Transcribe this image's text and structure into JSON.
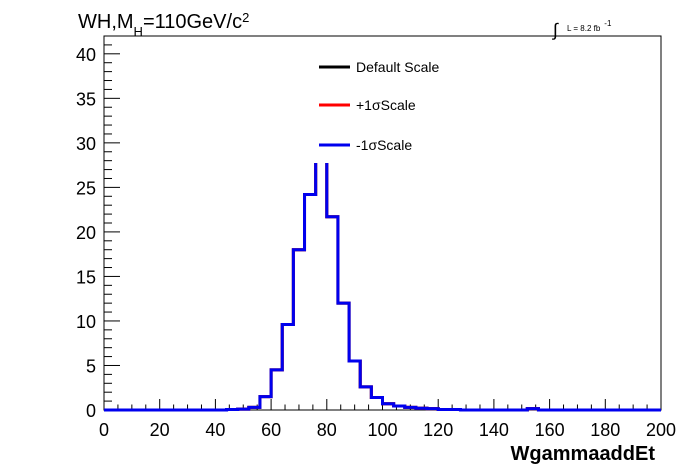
{
  "title": {
    "prefix": "WH,M",
    "subscript": "H",
    "suffix": "=110GeV/c",
    "superscript": "2"
  },
  "luminosity": {
    "integral_symbol": "∫",
    "text": "L = 8.2 fb",
    "superscript": "-1"
  },
  "chart_data": {
    "type": "line",
    "xlabel": "WgammaaddEt",
    "ylabel": "",
    "xlim": [
      0,
      200
    ],
    "ylim": [
      0,
      42
    ],
    "x_ticks": [
      "0",
      "20",
      "40",
      "60",
      "80",
      "100",
      "120",
      "140",
      "160",
      "180",
      "200"
    ],
    "y_ticks": [
      "0",
      "5",
      "10",
      "15",
      "20",
      "25",
      "30",
      "35",
      "40"
    ],
    "grid": false,
    "legend_position": "top-center",
    "bin_edges": [
      0,
      4,
      8,
      12,
      16,
      20,
      24,
      28,
      32,
      36,
      40,
      44,
      48,
      52,
      56,
      60,
      64,
      68,
      72,
      76,
      80,
      84,
      88,
      92,
      96,
      100,
      104,
      108,
      112,
      116,
      120,
      124,
      128,
      132,
      136,
      140,
      144,
      148,
      152,
      156,
      160,
      164,
      168,
      172,
      176,
      180,
      184,
      188,
      192,
      196,
      200
    ],
    "series": [
      {
        "name": "Default Scale",
        "color": "#000000",
        "values": [
          0,
          0,
          0,
          0,
          0,
          0,
          0,
          0,
          0,
          0,
          0,
          0.05,
          0.1,
          0.3,
          1.5,
          4.5,
          9.6,
          18,
          24.2,
          29.5,
          21.7,
          12,
          5.5,
          2.6,
          1.4,
          0.7,
          0.45,
          0.3,
          0.2,
          0.15,
          0.05,
          0.05,
          0,
          0,
          0,
          0,
          0,
          0,
          0.15,
          0,
          0,
          0,
          0,
          0,
          0,
          0,
          0,
          0,
          0,
          0
        ]
      },
      {
        "name": "+1σScale",
        "color": "#ff0000",
        "values": [
          0,
          0,
          0,
          0,
          0,
          0,
          0,
          0,
          0,
          0,
          0,
          0.05,
          0.1,
          0.3,
          1.5,
          4.5,
          9.6,
          18,
          24.2,
          29.5,
          21.7,
          12,
          5.5,
          2.6,
          1.4,
          0.7,
          0.45,
          0.3,
          0.2,
          0.15,
          0.05,
          0.05,
          0,
          0,
          0,
          0,
          0,
          0,
          0.15,
          0,
          0,
          0,
          0,
          0,
          0,
          0,
          0,
          0,
          0,
          0
        ]
      },
      {
        "name": "-1σScale",
        "color": "#0000ee",
        "values": [
          0,
          0,
          0,
          0,
          0,
          0,
          0,
          0,
          0,
          0,
          0,
          0.05,
          0.1,
          0.3,
          1.5,
          4.5,
          9.6,
          18,
          24.2,
          29.5,
          21.7,
          12,
          5.5,
          2.6,
          1.4,
          0.7,
          0.45,
          0.3,
          0.2,
          0.15,
          0.05,
          0.05,
          0,
          0,
          0,
          0,
          0,
          0,
          0.15,
          0,
          0,
          0,
          0,
          0,
          0,
          0,
          0,
          0,
          0,
          0
        ]
      }
    ]
  }
}
